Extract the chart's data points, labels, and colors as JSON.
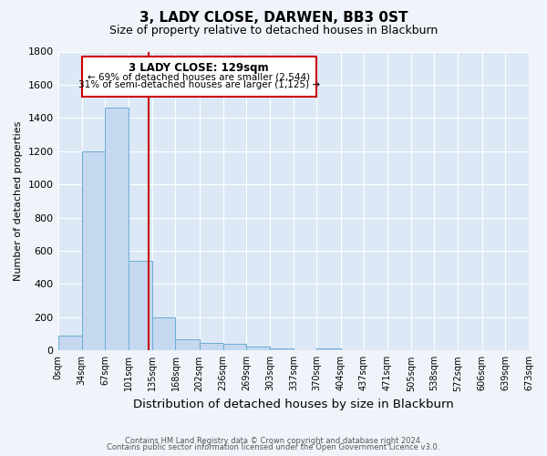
{
  "title": "3, LADY CLOSE, DARWEN, BB3 0ST",
  "subtitle": "Size of property relative to detached houses in Blackburn",
  "xlabel": "Distribution of detached houses by size in Blackburn",
  "ylabel": "Number of detached properties",
  "bar_left_edges": [
    0,
    34,
    67,
    101,
    135,
    168,
    202,
    236,
    269,
    303,
    337,
    370,
    404,
    437,
    471,
    505,
    538,
    572,
    606,
    639
  ],
  "bar_widths": [
    34,
    33,
    34,
    34,
    33,
    34,
    34,
    33,
    34,
    34,
    33,
    34,
    33,
    34,
    34,
    33,
    34,
    34,
    33,
    34
  ],
  "bar_heights": [
    90,
    1200,
    1460,
    540,
    200,
    65,
    45,
    40,
    25,
    15,
    0,
    15,
    0,
    0,
    0,
    0,
    0,
    0,
    0,
    0
  ],
  "bar_color": "#c5d8ef",
  "bar_edge_color": "#6aaed6",
  "tick_labels": [
    "0sqm",
    "34sqm",
    "67sqm",
    "101sqm",
    "135sqm",
    "168sqm",
    "202sqm",
    "236sqm",
    "269sqm",
    "303sqm",
    "337sqm",
    "370sqm",
    "404sqm",
    "437sqm",
    "471sqm",
    "505sqm",
    "538sqm",
    "572sqm",
    "606sqm",
    "639sqm",
    "673sqm"
  ],
  "ylim": [
    0,
    1800
  ],
  "yticks": [
    0,
    200,
    400,
    600,
    800,
    1000,
    1200,
    1400,
    1600,
    1800
  ],
  "xlim_max": 673,
  "vline_x": 129,
  "vline_color": "#cc0000",
  "box_text_line1": "3 LADY CLOSE: 129sqm",
  "box_text_line2": "← 69% of detached houses are smaller (2,544)",
  "box_text_line3": "31% of semi-detached houses are larger (1,125) →",
  "box_bg_color": "#ffffff",
  "box_edge_color": "#cc0000",
  "bg_color": "#dce8f5",
  "fig_bg_color": "#f0f4fa",
  "footer_line1": "Contains HM Land Registry data © Crown copyright and database right 2024.",
  "footer_line2": "Contains public sector information licensed under the Open Government Licence v3.0."
}
